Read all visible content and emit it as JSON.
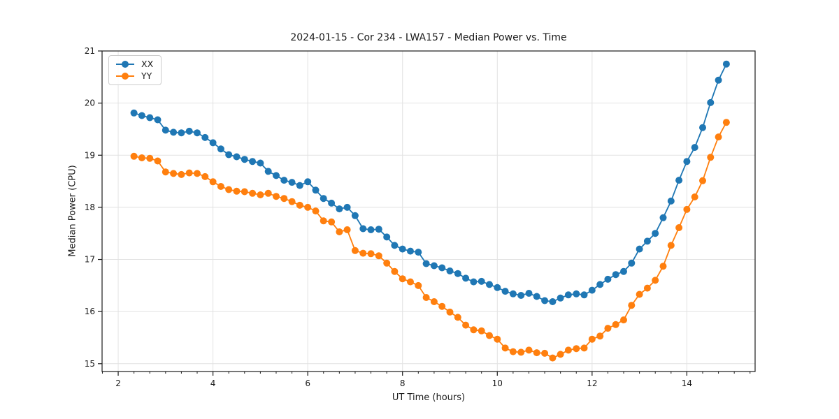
{
  "colors": {
    "background": "#ffffff",
    "grid": "#e2e2e2",
    "axis": "#1a1a1a",
    "text": "#1a1a1a",
    "series_blue": "#1f77b4",
    "series_orange": "#ff7f0e"
  },
  "chart_data": {
    "type": "line",
    "title": "2024-01-15 - Cor 234 - LWA157 - Median Power vs. Time",
    "xlabel": "UT Time (hours)",
    "ylabel": "Median Power (CPU)",
    "grid": true,
    "legend_position": "upper left",
    "xlim": [
      1.66,
      15.44
    ],
    "ylim": [
      14.85,
      21.0
    ],
    "xticks": [
      2,
      4,
      6,
      8,
      10,
      12,
      14
    ],
    "yticks": [
      15,
      16,
      17,
      18,
      19,
      20,
      21
    ],
    "minor_xtick_step_hours": 0.3333,
    "x": [
      2.333,
      2.5,
      2.667,
      2.833,
      3.0,
      3.167,
      3.333,
      3.5,
      3.667,
      3.833,
      4.0,
      4.167,
      4.333,
      4.5,
      4.667,
      4.833,
      5.0,
      5.167,
      5.333,
      5.5,
      5.667,
      5.833,
      6.0,
      6.167,
      6.333,
      6.5,
      6.667,
      6.833,
      7.0,
      7.167,
      7.333,
      7.5,
      7.667,
      7.833,
      8.0,
      8.167,
      8.333,
      8.5,
      8.667,
      8.833,
      9.0,
      9.167,
      9.333,
      9.5,
      9.667,
      9.833,
      10.0,
      10.167,
      10.333,
      10.5,
      10.667,
      10.833,
      11.0,
      11.167,
      11.333,
      11.5,
      11.667,
      11.833,
      12.0,
      12.167,
      12.333,
      12.5,
      12.667,
      12.833,
      13.0,
      13.167,
      13.333,
      13.5,
      13.667,
      13.833,
      14.0,
      14.167,
      14.333,
      14.5,
      14.667,
      14.833
    ],
    "series": [
      {
        "name": "XX",
        "color": "#1f77b4",
        "values": [
          19.81,
          19.76,
          19.72,
          19.68,
          19.48,
          19.44,
          19.43,
          19.46,
          19.43,
          19.34,
          19.24,
          19.12,
          19.01,
          18.97,
          18.92,
          18.88,
          18.85,
          18.69,
          18.61,
          18.52,
          18.48,
          18.42,
          18.49,
          18.33,
          18.17,
          18.08,
          17.97,
          18.0,
          17.84,
          17.59,
          17.57,
          17.58,
          17.43,
          17.27,
          17.2,
          17.16,
          17.14,
          16.92,
          16.88,
          16.84,
          16.78,
          16.73,
          16.64,
          16.57,
          16.58,
          16.52,
          16.46,
          16.39,
          16.34,
          16.31,
          16.35,
          16.29,
          16.21,
          16.19,
          16.26,
          16.32,
          16.34,
          16.32,
          16.41,
          16.52,
          16.62,
          16.71,
          16.77,
          16.93,
          17.2,
          17.35,
          17.5,
          17.8,
          18.12,
          18.52,
          18.88,
          19.15,
          19.53,
          20.01,
          20.44,
          20.75
        ]
      },
      {
        "name": "YY",
        "color": "#ff7f0e",
        "values": [
          18.98,
          18.95,
          18.94,
          18.89,
          18.68,
          18.65,
          18.63,
          18.66,
          18.65,
          18.59,
          18.49,
          18.4,
          18.34,
          18.31,
          18.3,
          18.27,
          18.24,
          18.27,
          18.21,
          18.17,
          18.11,
          18.04,
          18.0,
          17.93,
          17.74,
          17.72,
          17.53,
          17.57,
          17.17,
          17.12,
          17.11,
          17.07,
          16.93,
          16.77,
          16.63,
          16.57,
          16.5,
          16.27,
          16.19,
          16.1,
          15.99,
          15.89,
          15.74,
          15.65,
          15.63,
          15.54,
          15.47,
          15.3,
          15.23,
          15.22,
          15.26,
          15.21,
          15.2,
          15.11,
          15.18,
          15.26,
          15.29,
          15.3,
          15.47,
          15.53,
          15.68,
          15.75,
          15.84,
          16.12,
          16.33,
          16.45,
          16.6,
          16.87,
          17.27,
          17.61,
          17.96,
          18.2,
          18.51,
          18.96,
          19.35,
          19.63
        ]
      }
    ]
  }
}
